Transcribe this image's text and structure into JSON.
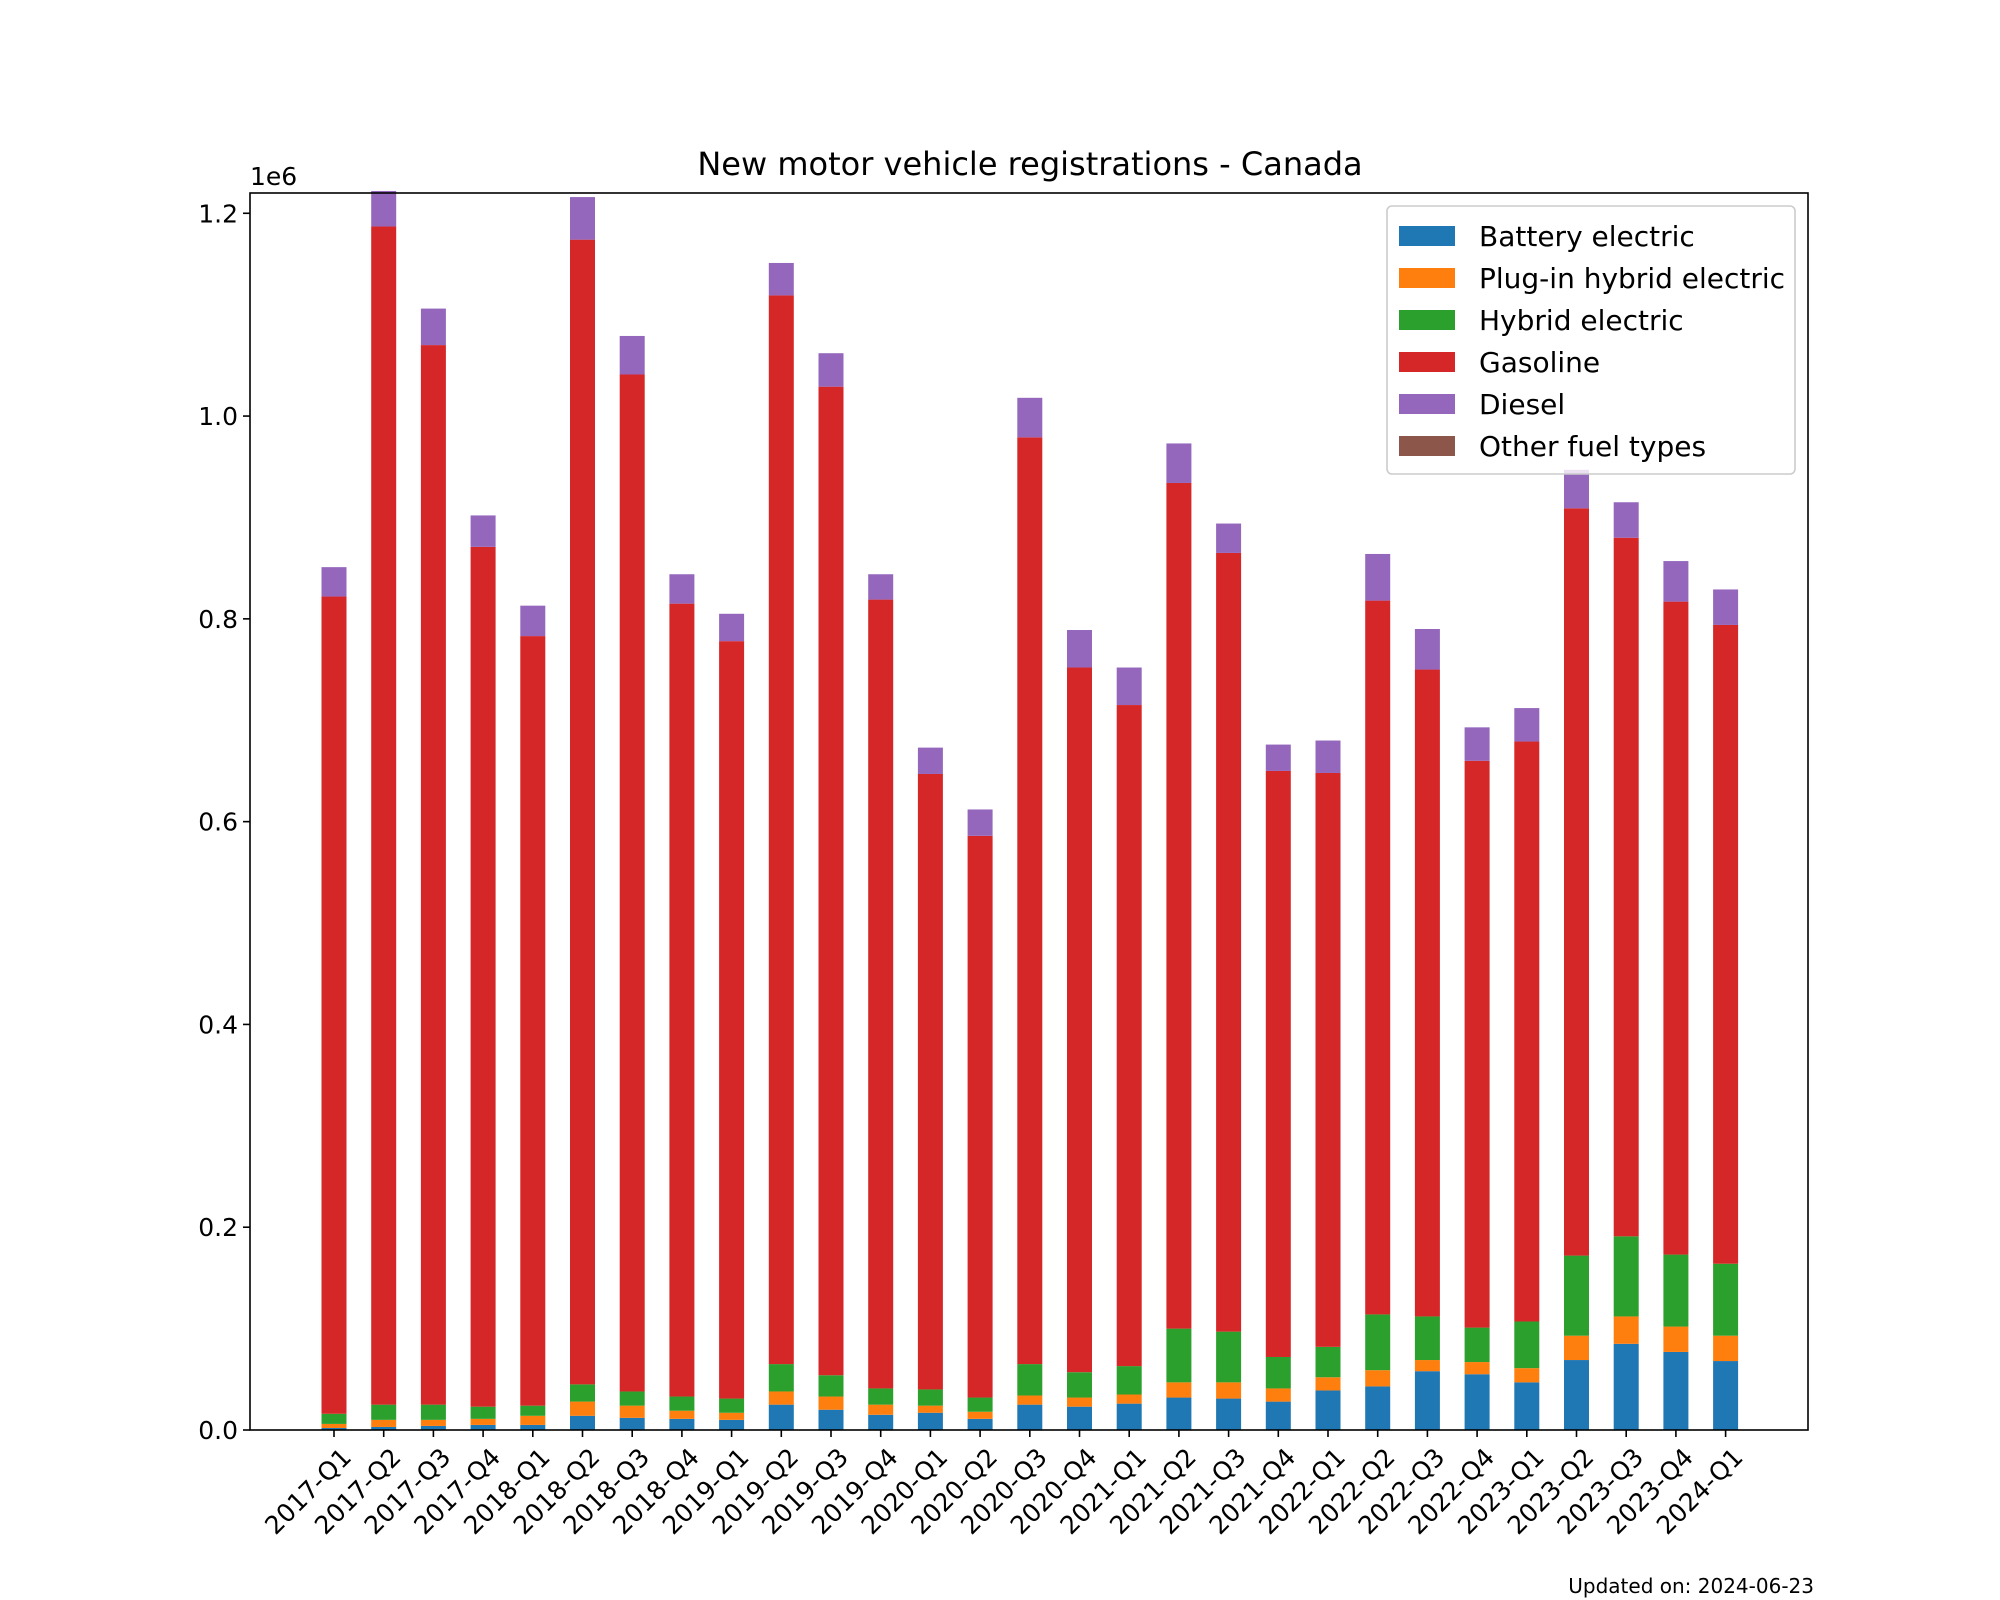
{
  "chart_data": {
    "type": "bar",
    "stacked": true,
    "title": "New motor vehicle registrations - Canada",
    "xlabel": "",
    "ylabel": "",
    "y_scale_label": "1e6",
    "y_scale_factor": 1000000,
    "ylim": [
      0,
      1220000
    ],
    "yticks": [
      0,
      200000,
      400000,
      600000,
      800000,
      1000000,
      1200000
    ],
    "ytick_labels": [
      "0.0",
      "0.2",
      "0.4",
      "0.6",
      "0.8",
      "1.0",
      "1.2"
    ],
    "grid": false,
    "legend_position": "top-right",
    "categories": [
      "2017-Q1",
      "2017-Q2",
      "2017-Q3",
      "2017-Q4",
      "2018-Q1",
      "2018-Q2",
      "2018-Q3",
      "2018-Q4",
      "2019-Q1",
      "2019-Q2",
      "2019-Q3",
      "2019-Q4",
      "2020-Q1",
      "2020-Q2",
      "2020-Q3",
      "2020-Q4",
      "2021-Q1",
      "2021-Q2",
      "2021-Q3",
      "2021-Q4",
      "2022-Q1",
      "2022-Q2",
      "2022-Q3",
      "2022-Q4",
      "2023-Q1",
      "2023-Q2",
      "2023-Q3",
      "2023-Q4",
      "2024-Q1"
    ],
    "series": [
      {
        "name": "Battery electric",
        "color": "#1f77b4",
        "values": [
          2000,
          3000,
          4000,
          5000,
          5000,
          14000,
          12000,
          11000,
          10000,
          25000,
          20000,
          15000,
          17000,
          11000,
          25000,
          23000,
          26000,
          32000,
          31000,
          28000,
          39000,
          43000,
          58000,
          55000,
          47000,
          69000,
          85000,
          77000,
          68000
        ]
      },
      {
        "name": "Plug-in hybrid electric",
        "color": "#ff7f0e",
        "values": [
          4000,
          7000,
          6000,
          6000,
          9000,
          14000,
          12000,
          8000,
          7000,
          13000,
          13000,
          10000,
          7000,
          7000,
          9000,
          9000,
          9000,
          15000,
          16000,
          13000,
          13000,
          16000,
          11000,
          12000,
          14000,
          24000,
          27000,
          25000,
          25000
        ]
      },
      {
        "name": "Hybrid electric",
        "color": "#2ca02c",
        "values": [
          10000,
          15000,
          15000,
          12000,
          10000,
          17000,
          14000,
          14000,
          14000,
          27000,
          21000,
          16000,
          16000,
          14000,
          31000,
          25000,
          28000,
          53000,
          50000,
          31000,
          30000,
          55000,
          43000,
          34000,
          46000,
          79000,
          79000,
          71000,
          71000
        ]
      },
      {
        "name": "Gasoline",
        "color": "#d62728",
        "values": [
          806000,
          1162000,
          1045000,
          848000,
          759000,
          1129000,
          1003000,
          782000,
          747000,
          1054000,
          975000,
          778000,
          607000,
          554000,
          914000,
          695000,
          652000,
          834000,
          768000,
          578000,
          566000,
          704000,
          638000,
          559000,
          572000,
          737000,
          689000,
          644000,
          630000
        ]
      },
      {
        "name": "Diesel",
        "color": "#9467bd",
        "values": [
          29000,
          35000,
          36000,
          31000,
          30000,
          42000,
          38000,
          29000,
          27000,
          32000,
          33000,
          25000,
          26000,
          26000,
          39000,
          37000,
          37000,
          39000,
          29000,
          26000,
          32000,
          46000,
          40000,
          33000,
          33000,
          38000,
          35000,
          40000,
          35000
        ]
      },
      {
        "name": "Other fuel types",
        "color": "#8c564b",
        "values": [
          0,
          0,
          0,
          0,
          0,
          0,
          0,
          0,
          0,
          0,
          0,
          0,
          0,
          0,
          0,
          0,
          0,
          0,
          0,
          0,
          0,
          0,
          0,
          0,
          0,
          0,
          0,
          0,
          0
        ]
      }
    ]
  },
  "footer": {
    "updated": "Updated on: 2024-06-23"
  }
}
